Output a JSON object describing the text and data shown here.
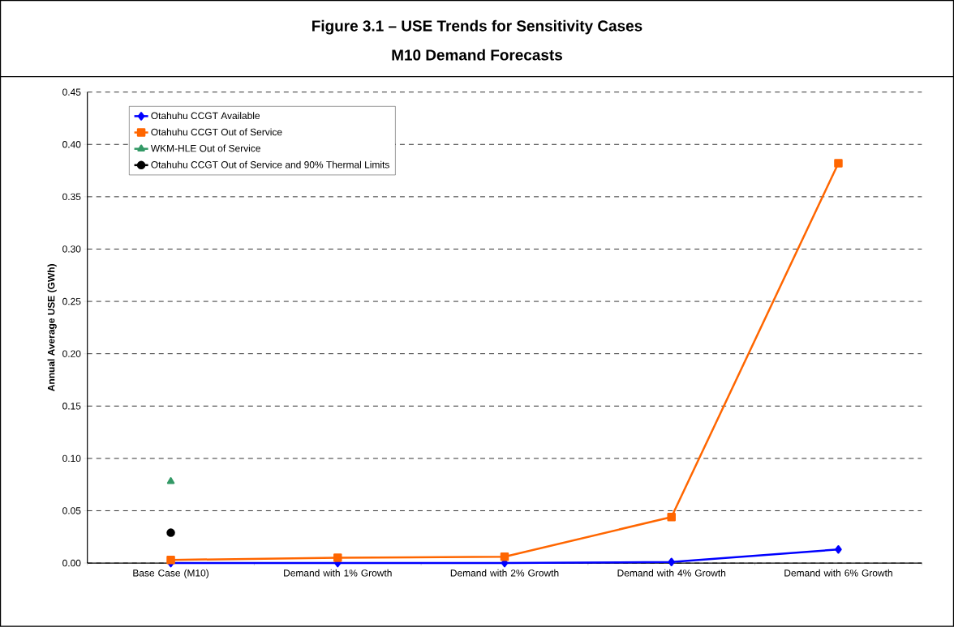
{
  "chart_data": {
    "type": "line",
    "title": "Figure 3.1 – USE Trends for Sensitivity Cases",
    "subtitle": "M10 Demand Forecasts",
    "ylabel": "Annual Average USE (GWh)",
    "categories": [
      "Base Case (M10)",
      "Demand with 1% Growth",
      "Demand with 2% Growth",
      "Demand with 4% Growth",
      "Demand with 6% Growth"
    ],
    "series": [
      {
        "name": "Otahuhu CCGT Available",
        "color": "#0000ff",
        "marker": "diamond",
        "values": [
          0,
          0,
          0,
          0.001,
          0.013
        ]
      },
      {
        "name": "Otahuhu CCGT Out of Service",
        "color": "#ff6600",
        "marker": "square",
        "values": [
          0.003,
          0.005,
          0.006,
          0.044,
          0.382
        ]
      },
      {
        "name": "WKM-HLE Out of Service",
        "color": "#339966",
        "marker": "triangle",
        "values": [
          0.078,
          null,
          null,
          null,
          null
        ]
      },
      {
        "name": "Otahuhu CCGT Out of Service and 90% Thermal Limits",
        "color": "#000000",
        "marker": "circle",
        "values": [
          0.029,
          null,
          null,
          null,
          null
        ]
      }
    ],
    "ylim": [
      0,
      0.45
    ],
    "yticks": [
      {
        "value": 0,
        "label": "0.00"
      },
      {
        "value": 0.05,
        "label": "0.05"
      },
      {
        "value": 0.1,
        "label": "0.10"
      },
      {
        "value": 0.15,
        "label": "0.15"
      },
      {
        "value": 0.2,
        "label": "0.20"
      },
      {
        "value": 0.25,
        "label": "0.25"
      },
      {
        "value": 0.3,
        "label": "0.30"
      },
      {
        "value": 0.35,
        "label": "0.35"
      },
      {
        "value": 0.4,
        "label": "0.40"
      },
      {
        "value": 0.45,
        "label": "0.45"
      }
    ],
    "grid": "y",
    "legend": "top left"
  }
}
